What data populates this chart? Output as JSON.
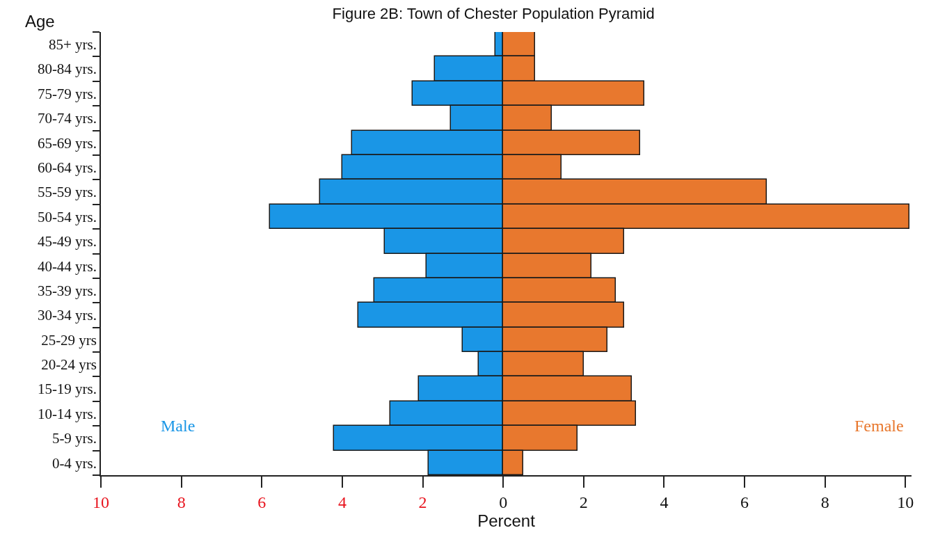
{
  "chart_data": {
    "type": "bar",
    "orientation": "horizontal",
    "title": "Figure 2B: Town of Chester Population Pyramid",
    "xlabel": "Percent",
    "ylabel": "Age",
    "categories": [
      "85+ yrs.",
      "80-84 yrs.",
      "75-79 yrs.",
      "70-74 yrs.",
      "65-69 yrs.",
      "60-64 yrs.",
      "55-59 yrs.",
      "50-54 yrs.",
      "45-49 yrs.",
      "40-44 yrs.",
      "35-39 yrs.",
      "30-34 yrs.",
      "25-29 yrs",
      "20-24 yrs",
      "15-19 yrs.",
      "10-14 yrs.",
      "5-9 yrs.",
      "0-4 yrs."
    ],
    "series": [
      {
        "name": "Male",
        "color": "#1a96e6",
        "values": [
          -0.2,
          -1.7,
          -2.25,
          -1.3,
          -3.75,
          -4.0,
          -4.55,
          -5.8,
          -2.95,
          -1.9,
          -3.2,
          -3.6,
          -1.0,
          -0.6,
          -2.1,
          -2.8,
          -4.2,
          -1.85
        ]
      },
      {
        "name": "Female",
        "color": "#e8782e",
        "values": [
          0.8,
          0.8,
          3.5,
          1.2,
          3.4,
          1.45,
          6.55,
          10.1,
          3.0,
          2.2,
          2.8,
          3.0,
          2.6,
          2.0,
          3.2,
          3.3,
          1.85,
          0.5
        ]
      }
    ],
    "xlim": [
      -10,
      10.15
    ],
    "xticks": [
      {
        "value": -10,
        "label": "10"
      },
      {
        "value": -8,
        "label": "8"
      },
      {
        "value": -6,
        "label": "6"
      },
      {
        "value": -4,
        "label": "4"
      },
      {
        "value": -2,
        "label": "2"
      },
      0,
      2,
      4,
      6,
      8,
      10
    ],
    "stacked": true,
    "grid": false,
    "legend": false
  }
}
